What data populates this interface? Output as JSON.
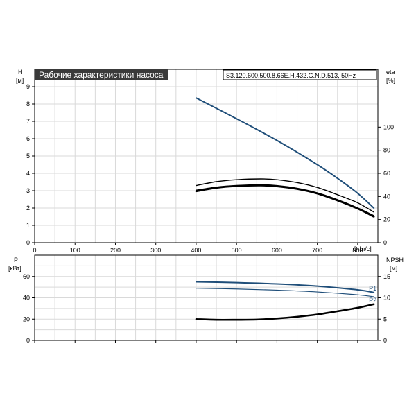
{
  "chart_data": [
    {
      "type": "line",
      "title": "Рабочие характеристики насоса",
      "subtitle": "S3.120.600.500.8.66E.H.432.G.N.D.513, 50Hz",
      "ylabel": "H",
      "yunit": "[м]",
      "y2label": "eta",
      "y2unit": "[%]",
      "xlabel": "Q [л/с]",
      "xlim": [
        0,
        850
      ],
      "ylim": [
        0,
        10
      ],
      "y2lim": [
        0,
        150
      ],
      "xticks": [
        0,
        100,
        200,
        300,
        400,
        500,
        600,
        700,
        800
      ],
      "yticks": [
        0,
        1,
        2,
        3,
        4,
        5,
        6,
        7,
        8,
        9
      ],
      "y2ticks": [
        0,
        20,
        40,
        60,
        80,
        100
      ],
      "grid": true,
      "series": [
        {
          "name": "",
          "axis": "left",
          "color": "#1f4e79",
          "x": [
            400,
            500,
            600,
            700,
            760,
            800,
            840
          ],
          "y": [
            8.35,
            7.15,
            5.9,
            4.5,
            3.55,
            2.85,
            2.0
          ]
        },
        {
          "name": "",
          "axis": "right",
          "color": "#000000",
          "x": [
            400,
            450,
            500,
            560,
            600,
            650,
            700,
            750,
            800,
            840
          ],
          "y": [
            49.5,
            52.8,
            54.5,
            55.2,
            54.5,
            52.0,
            47.8,
            41.5,
            34.5,
            26.5
          ]
        },
        {
          "name": "",
          "axis": "right",
          "color": "#000000",
          "x": [
            400,
            450,
            500,
            560,
            600,
            650,
            700,
            750,
            800,
            840
          ],
          "y": [
            44.5,
            47.5,
            49.0,
            49.5,
            48.8,
            46.5,
            42.5,
            36.5,
            29.5,
            22.5
          ]
        },
        {
          "name": "",
          "axis": "right",
          "color": "#000000",
          "x": [
            400,
            450,
            500,
            560,
            600,
            650,
            700,
            750,
            800,
            840
          ],
          "y": [
            45.5,
            48.2,
            49.6,
            50.2,
            49.5,
            47.2,
            43.2,
            37.3,
            30.2,
            23.5
          ]
        }
      ]
    },
    {
      "type": "line",
      "ylabel": "P",
      "yunit": "[кВт]",
      "y2label": "NPSH",
      "y2unit": "[м]",
      "xlim": [
        0,
        850
      ],
      "ylim": [
        0,
        80
      ],
      "y2lim": [
        0,
        20
      ],
      "yticks": [
        0,
        20,
        40,
        60
      ],
      "y2ticks": [
        0,
        5,
        10,
        15
      ],
      "grid": true,
      "series": [
        {
          "name": "P1",
          "axis": "left",
          "color": "#1f4e79",
          "x": [
            400,
            500,
            600,
            700,
            800,
            840
          ],
          "y": [
            55.0,
            54.2,
            53.0,
            51.0,
            47.5,
            45.0
          ]
        },
        {
          "name": "P2",
          "axis": "left",
          "color": "#1f4e79",
          "x": [
            400,
            500,
            600,
            700,
            800,
            840
          ],
          "y": [
            49.0,
            48.3,
            47.2,
            45.5,
            42.8,
            41.0
          ]
        },
        {
          "name": "",
          "axis": "right",
          "color": "#000000",
          "x": [
            400,
            450,
            500,
            550,
            600,
            650,
            700,
            750,
            800,
            840
          ],
          "y": [
            5.0,
            4.85,
            4.85,
            4.9,
            5.15,
            5.55,
            6.1,
            6.85,
            7.65,
            8.5
          ]
        }
      ]
    }
  ]
}
